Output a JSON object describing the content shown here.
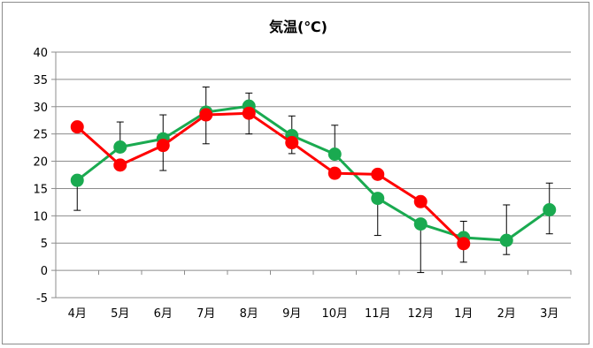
{
  "chart_data": {
    "type": "line",
    "title": "気温(℃)",
    "xlabel": "",
    "ylabel": "",
    "ylim": [
      -5,
      40
    ],
    "yticks": [
      -5,
      0,
      5,
      10,
      15,
      20,
      25,
      30,
      35,
      40
    ],
    "grid": "horizontal",
    "legend": "none",
    "categories": [
      "4月",
      "5月",
      "6月",
      "7月",
      "8月",
      "9月",
      "10月",
      "11月",
      "12月",
      "1月",
      "2月",
      "3月"
    ],
    "series": [
      {
        "color": "#1aaa50",
        "values": [
          16.5,
          22.6,
          24.1,
          29.0,
          30.1,
          24.7,
          21.3,
          13.2,
          8.5,
          6.0,
          5.5,
          11.1
        ],
        "error_low": [
          11.0,
          null,
          18.3,
          23.2,
          25.0,
          21.4,
          null,
          6.4,
          -0.4,
          1.5,
          2.9,
          6.7
        ],
        "error_high": [
          null,
          27.2,
          28.5,
          33.6,
          32.5,
          28.3,
          26.6,
          null,
          null,
          9.0,
          12.0,
          16.0
        ]
      },
      {
        "color": "#ff0000",
        "values": [
          26.3,
          19.3,
          22.9,
          28.5,
          28.8,
          23.4,
          17.8,
          17.6,
          12.6,
          4.9,
          null,
          null
        ]
      }
    ]
  }
}
